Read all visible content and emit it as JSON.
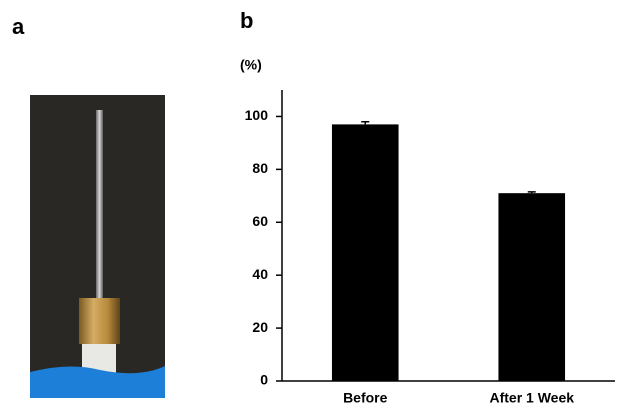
{
  "panel_a": {
    "label": "a"
  },
  "chart_data": {
    "type": "bar",
    "panel_label": "b",
    "ylabel": "(%)",
    "categories": [
      "Before",
      "After 1 Week"
    ],
    "values": [
      97,
      71
    ],
    "errors": [
      1,
      0.5
    ],
    "color": "#000000",
    "ylim": [
      0,
      110
    ],
    "yticks": [
      0,
      20,
      40,
      60,
      80,
      100
    ],
    "grid": false
  }
}
